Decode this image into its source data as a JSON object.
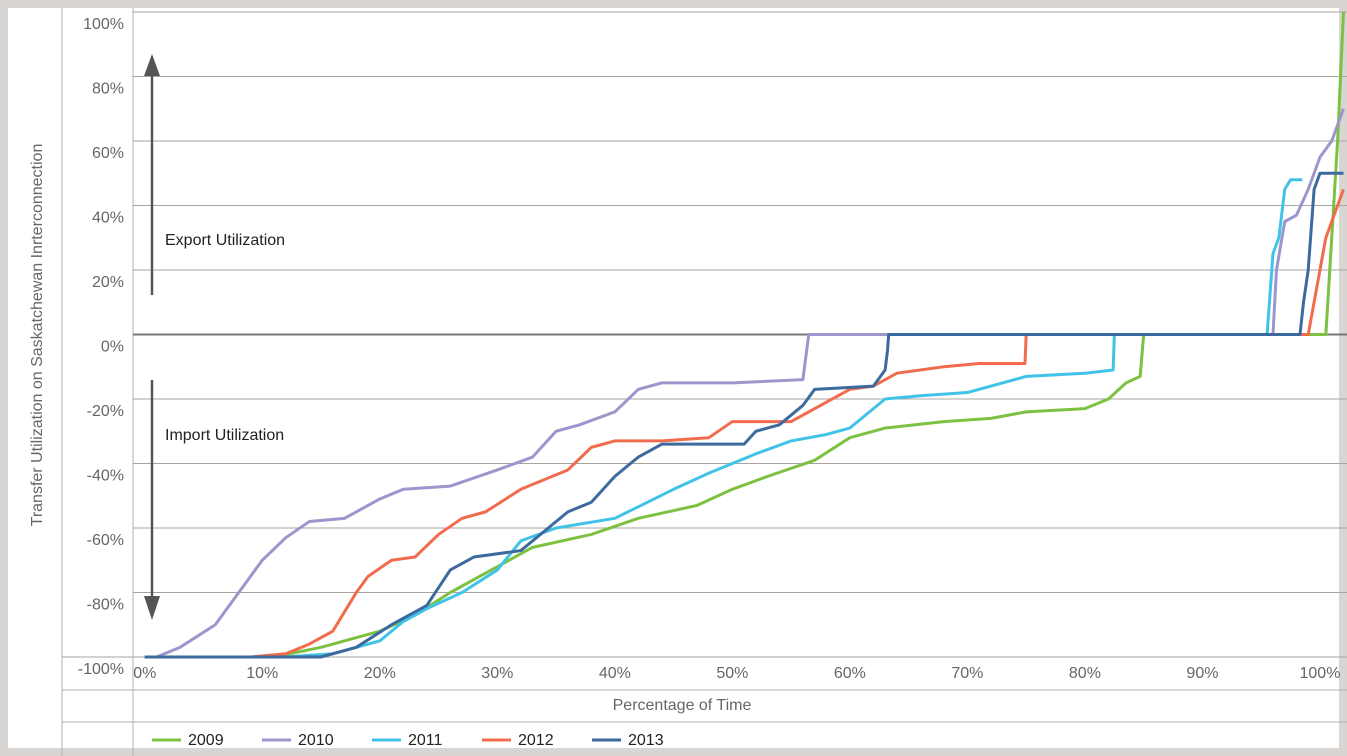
{
  "chart_data": {
    "type": "line",
    "ylabel": "Transfer Utilization on Saskatchewan Inrterconnection",
    "xlabel": "Percentage of Time",
    "annotations": [
      "Export Utilization",
      "Import Utilization"
    ],
    "xlim": [
      -1,
      102.3
    ],
    "ylim": [
      -100,
      100
    ],
    "xticks": [
      {
        "value": 0,
        "label": "0%"
      },
      {
        "value": 10,
        "label": "10%"
      },
      {
        "value": 20,
        "label": "20%"
      },
      {
        "value": 30,
        "label": "30%"
      },
      {
        "value": 40,
        "label": "40%"
      },
      {
        "value": 50,
        "label": "50%"
      },
      {
        "value": 60,
        "label": "60%"
      },
      {
        "value": 70,
        "label": "70%"
      },
      {
        "value": 80,
        "label": "80%"
      },
      {
        "value": 90,
        "label": "90%"
      },
      {
        "value": 100,
        "label": "100%"
      }
    ],
    "yticks": [
      {
        "value": 100,
        "label": "100%"
      },
      {
        "value": 80,
        "label": "80%"
      },
      {
        "value": 60,
        "label": "60%"
      },
      {
        "value": 40,
        "label": "40%"
      },
      {
        "value": 20,
        "label": "20%"
      },
      {
        "value": 0,
        "label": "0%"
      },
      {
        "value": -20,
        "label": "-20%"
      },
      {
        "value": -40,
        "label": "-40%"
      },
      {
        "value": -60,
        "label": "-60%"
      },
      {
        "value": -80,
        "label": "-80%"
      },
      {
        "value": -100,
        "label": "-100%"
      }
    ],
    "grid": true,
    "series": [
      {
        "name": "2009",
        "color": "#7dc142",
        "x": [
          0,
          11,
          15,
          20,
          23,
          26,
          30,
          33,
          38,
          42,
          47,
          50,
          53,
          57,
          60,
          63,
          68,
          72,
          75,
          80,
          82,
          83.5,
          84.7,
          85,
          100.5,
          101,
          101.5,
          102
        ],
        "values": [
          -100,
          -100,
          -97,
          -92,
          -87,
          -80,
          -72,
          -66,
          -62,
          -57,
          -53,
          -48,
          -44,
          -39,
          -32,
          -29,
          -27,
          -26,
          -24,
          -23,
          -20,
          -15,
          -13,
          0,
          0,
          30,
          60,
          100
        ]
      },
      {
        "name": "2010",
        "color": "#9b96cc",
        "x": [
          0,
          1,
          3,
          6,
          8,
          10,
          12,
          14,
          17,
          20,
          22,
          26,
          30,
          33,
          35,
          37,
          40,
          42,
          44,
          50,
          56,
          56.5,
          96,
          96.3,
          97,
          98,
          99,
          100,
          101,
          102
        ],
        "values": [
          -100,
          -100,
          -97,
          -90,
          -80,
          -70,
          -63,
          -58,
          -57,
          -51,
          -48,
          -47,
          -42,
          -38,
          -30,
          -28,
          -24,
          -17,
          -15,
          -15,
          -14,
          0,
          0,
          20,
          35,
          37,
          45,
          55,
          60,
          70
        ]
      },
      {
        "name": "2011",
        "color": "#41c3e8",
        "x": [
          0,
          12,
          16,
          20,
          22,
          24,
          27,
          30,
          32,
          35,
          40,
          45,
          48,
          52,
          55,
          58,
          60,
          63,
          66,
          70,
          75,
          80,
          82.4,
          82.5,
          95.5,
          96,
          96.5,
          97,
          97.5,
          98.5
        ],
        "values": [
          -100,
          -100,
          -99,
          -95,
          -89,
          -85,
          -80,
          -73,
          -64,
          -60,
          -57,
          -48,
          -43,
          -37,
          -33,
          -31,
          -29,
          -20,
          -19,
          -18,
          -13,
          -12,
          -11,
          0,
          0,
          25,
          30,
          45,
          48,
          48
        ]
      },
      {
        "name": "2012",
        "color": "#f06c4d",
        "x": [
          0,
          9,
          12,
          14,
          16,
          18,
          19,
          21,
          23,
          25,
          27,
          29,
          32,
          36,
          38,
          40,
          44,
          48,
          50,
          55,
          58,
          60,
          62,
          64,
          68,
          71,
          74.9,
          75,
          99,
          99.5,
          100.5,
          101,
          102
        ],
        "values": [
          -100,
          -100,
          -99,
          -96,
          -92,
          -80,
          -75,
          -70,
          -69,
          -62,
          -57,
          -55,
          -48,
          -42,
          -35,
          -33,
          -33,
          -32,
          -27,
          -27,
          -21,
          -17,
          -16,
          -12,
          -10,
          -9,
          -9,
          0,
          0,
          10,
          30,
          35,
          45
        ]
      },
      {
        "name": "2013",
        "color": "#3d6a9e",
        "x": [
          0,
          15,
          18,
          21,
          24,
          26,
          28,
          32,
          34,
          36,
          38,
          40,
          42,
          44,
          51,
          52,
          54,
          56,
          57,
          62,
          63,
          63.2,
          63.3,
          98.3,
          98.6,
          99,
          99.5,
          100,
          102
        ],
        "values": [
          -100,
          -100,
          -97,
          -90,
          -84,
          -73,
          -69,
          -67,
          -61,
          -55,
          -52,
          -44,
          -38,
          -34,
          -34,
          -30,
          -28,
          -22,
          -17,
          -16,
          -11,
          -5,
          0,
          0,
          10,
          20,
          45,
          50,
          50
        ]
      }
    ]
  }
}
